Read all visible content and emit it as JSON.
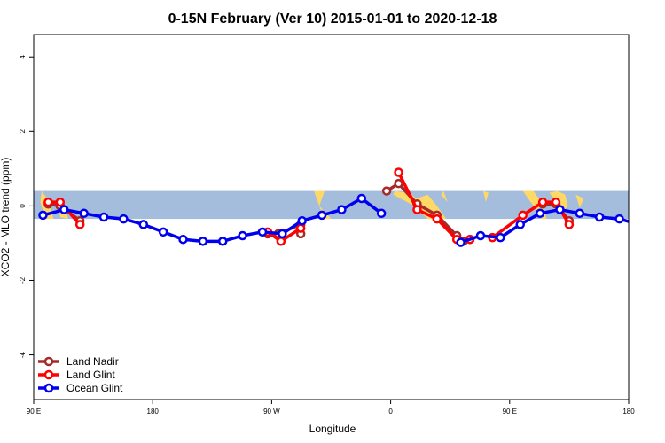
{
  "chart_data": {
    "type": "line",
    "title": "0-15N February (Ver 10)   2015-01-01 to 2020-12-18",
    "xlabel": "Longitude",
    "ylabel": "XCO2 - MLO trend (ppm)",
    "xlim": [
      90,
      540
    ],
    "ylim": [
      -5.2,
      4.6
    ],
    "x_ticks": [
      {
        "value": 90,
        "label": "90 E"
      },
      {
        "value": 180,
        "label": "180"
      },
      {
        "value": 270,
        "label": "90 W"
      },
      {
        "value": 360,
        "label": "0"
      },
      {
        "value": 450,
        "label": "90 E"
      },
      {
        "value": 540,
        "label": "180"
      }
    ],
    "y_ticks": [
      -4,
      -2,
      0,
      2,
      4
    ],
    "grid": false,
    "legend_position": "bottom-left",
    "background_band": {
      "y_range": [
        -0.35,
        0.4
      ],
      "color": "#a5bddc",
      "land_color": "#ffd966"
    },
    "series": [
      {
        "name": "Land Nadir",
        "color": "#a52a2a",
        "segments": [
          [
            [
              101,
              0.05
            ],
            [
              110,
              0.0
            ],
            [
              125,
              -0.4
            ]
          ],
          [
            [
              267,
              -0.75
            ],
            [
              275,
              -0.75
            ],
            [
              292,
              -0.5
            ],
            [
              292,
              -0.75
            ]
          ],
          [
            [
              357,
              0.4
            ],
            [
              366,
              0.6
            ],
            [
              380,
              0.05
            ],
            [
              395,
              -0.25
            ],
            [
              410,
              -0.8
            ],
            [
              415,
              -0.95
            ],
            [
              420,
              -0.9
            ]
          ],
          [
            [
              475,
              0.05
            ],
            [
              485,
              0.05
            ],
            [
              495,
              -0.4
            ]
          ]
        ]
      },
      {
        "name": "Land Glint",
        "color": "#ff0000",
        "segments": [
          [
            [
              101,
              0.1
            ],
            [
              110,
              0.1
            ],
            [
              125,
              -0.5
            ]
          ],
          [
            [
              267,
              -0.7
            ],
            [
              277,
              -0.95
            ],
            [
              292,
              -0.6
            ]
          ],
          [
            [
              366,
              0.9
            ],
            [
              380,
              -0.1
            ],
            [
              395,
              -0.35
            ],
            [
              410,
              -0.9
            ],
            [
              420,
              -0.9
            ]
          ],
          [
            [
              437,
              -0.85
            ],
            [
              460,
              -0.25
            ],
            [
              475,
              0.1
            ],
            [
              485,
              0.1
            ],
            [
              495,
              -0.5
            ]
          ]
        ]
      },
      {
        "name": "Ocean Glint",
        "color": "#0000ee",
        "segments": [
          [
            [
              97,
              -0.25
            ],
            [
              113,
              -0.1
            ],
            [
              128,
              -0.2
            ],
            [
              143,
              -0.3
            ],
            [
              158,
              -0.35
            ],
            [
              173,
              -0.5
            ],
            [
              188,
              -0.7
            ],
            [
              203,
              -0.9
            ],
            [
              218,
              -0.95
            ],
            [
              233,
              -0.95
            ],
            [
              248,
              -0.8
            ],
            [
              263,
              -0.7
            ],
            [
              278,
              -0.75
            ],
            [
              293,
              -0.4
            ],
            [
              308,
              -0.25
            ],
            [
              323,
              -0.1
            ],
            [
              338,
              0.2
            ],
            [
              353,
              -0.2
            ]
          ],
          [
            [
              413,
              -0.98
            ],
            [
              428,
              -0.8
            ],
            [
              443,
              -0.85
            ],
            [
              458,
              -0.5
            ],
            [
              473,
              -0.2
            ],
            [
              488,
              -0.1
            ],
            [
              503,
              -0.2
            ],
            [
              518,
              -0.3
            ],
            [
              533,
              -0.35
            ],
            [
              548,
              -0.5
            ]
          ]
        ]
      }
    ]
  }
}
